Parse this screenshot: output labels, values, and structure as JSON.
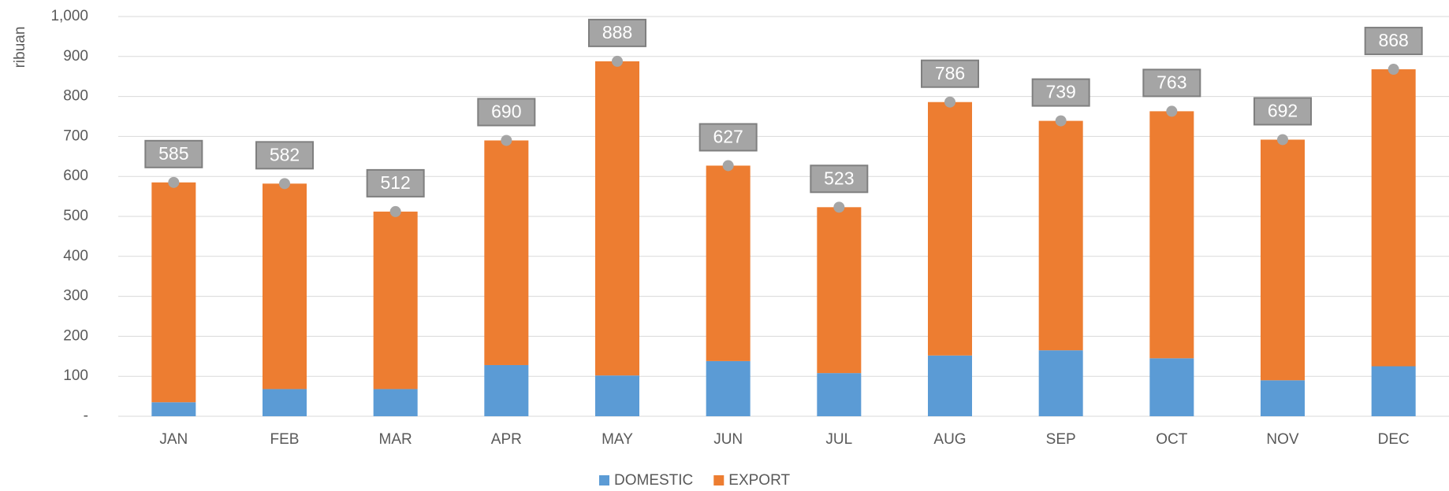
{
  "chart_data": {
    "type": "stacked-bar",
    "ylabel": "ribuan",
    "categories": [
      "JAN",
      "FEB",
      "MAR",
      "APR",
      "MAY",
      "JUN",
      "JUL",
      "AUG",
      "SEP",
      "OCT",
      "NOV",
      "DEC"
    ],
    "series": [
      {
        "name": "DOMESTIC",
        "color": "#5b9bd5",
        "values": [
          35,
          68,
          68,
          128,
          102,
          138,
          108,
          152,
          165,
          145,
          90,
          125
        ]
      },
      {
        "name": "EXPORT",
        "color": "#ed7d31",
        "values": [
          550,
          514,
          444,
          562,
          786,
          489,
          415,
          634,
          574,
          618,
          602,
          743
        ]
      }
    ],
    "totals": {
      "color": "#a5a5a5",
      "values": [
        585,
        582,
        512,
        690,
        888,
        627,
        523,
        786,
        739,
        763,
        692,
        868
      ]
    },
    "ylim": [
      0,
      1000
    ],
    "yticks": [
      {
        "value": 0,
        "label": "-"
      },
      100,
      200,
      300,
      400,
      500,
      600,
      700,
      800,
      900,
      {
        "value": 1000,
        "label": "1,000"
      }
    ],
    "grid": true,
    "legend": "bottom"
  }
}
